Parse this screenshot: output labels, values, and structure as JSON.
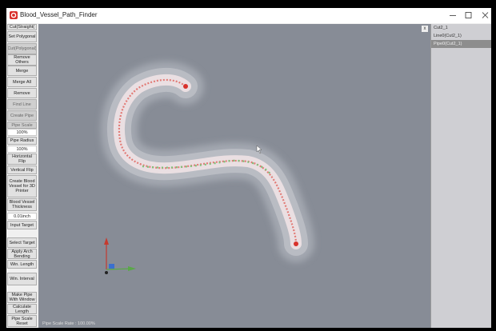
{
  "window": {
    "title": "Blood_Vessel_Path_Finder"
  },
  "toolbar": {
    "buttons": [
      "Cut(Straight(",
      "Set Polygonal",
      "Cut(Polygonal)",
      "Remove Others",
      "Merge",
      "Merge All",
      "Remove",
      "Find Line",
      "Create Pipe",
      "Pipe Scale",
      "100%",
      "Pipe Radius",
      "100%",
      "Horizontal Flip",
      "Vertical Flip",
      "Create Blood Vessel for 3D Printer",
      "Blood Vessel Thickness",
      "0.01inch",
      "Input Target",
      "Select Target",
      "Apply Arch Bending",
      "Win. Length",
      "Win. Interval",
      "Make Pipe With Window",
      "Calculate Length",
      "Pipe Scale Reset"
    ]
  },
  "viewport": {
    "status": "Pipe Scale Rate : 100.00%",
    "close": "x"
  },
  "panel": {
    "items": [
      "Cut2_1",
      "Line0(Cut2_1)",
      "Pipe0(Cut2_1)"
    ]
  }
}
